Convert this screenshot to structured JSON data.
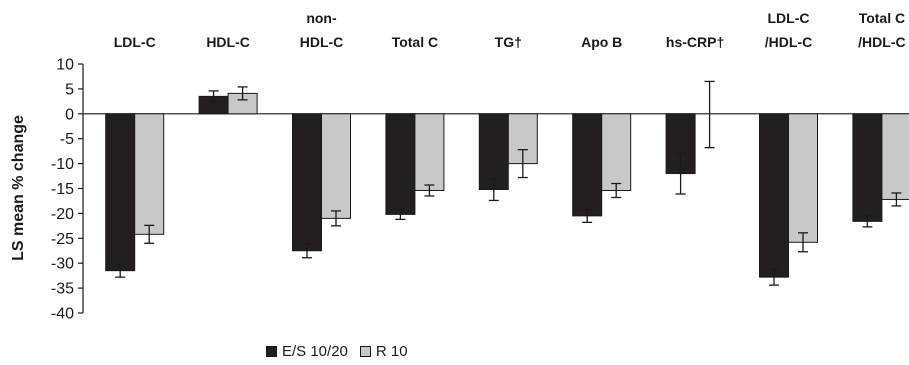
{
  "chart_data": {
    "type": "bar",
    "title": "",
    "xlabel": "",
    "ylabel": "LS mean % change",
    "ylim": [
      -40,
      10
    ],
    "yticks": [
      10,
      5,
      0,
      -5,
      -10,
      -15,
      -20,
      -25,
      -30,
      -35,
      -40
    ],
    "grid": false,
    "legend_position": "bottom",
    "categories": [
      [
        "LDL-C"
      ],
      [
        "HDL-C"
      ],
      [
        "non-",
        "HDL-C"
      ],
      [
        "Total C"
      ],
      [
        "TG†"
      ],
      [
        "Apo B"
      ],
      [
        "hs-CRP†"
      ],
      [
        "LDL-C",
        "/HDL-C"
      ],
      [
        "Total C",
        "/HDL-C"
      ]
    ],
    "series": [
      {
        "name": "E/S 10/20",
        "color": "#231f20",
        "values": [
          -31.5,
          3.5,
          -27.5,
          -20.2,
          -15.2,
          -20.5,
          -12.0,
          -32.8,
          -21.6
        ],
        "errors": [
          1.3,
          1.1,
          1.4,
          1.0,
          2.2,
          1.3,
          4.1,
          1.6,
          1.1
        ]
      },
      {
        "name": "R 10",
        "color": "#c8c8c8",
        "values": [
          -24.2,
          4.1,
          -21.0,
          -15.4,
          -10.0,
          -15.4,
          null,
          -25.8,
          -17.2
        ],
        "errors": [
          1.8,
          1.3,
          1.5,
          1.1,
          2.8,
          1.4,
          null,
          1.9,
          1.3
        ]
      }
    ],
    "extra_error_bars": [
      {
        "category_index": 6,
        "center": 0.0,
        "low": -6.8,
        "high": 6.5
      }
    ]
  }
}
